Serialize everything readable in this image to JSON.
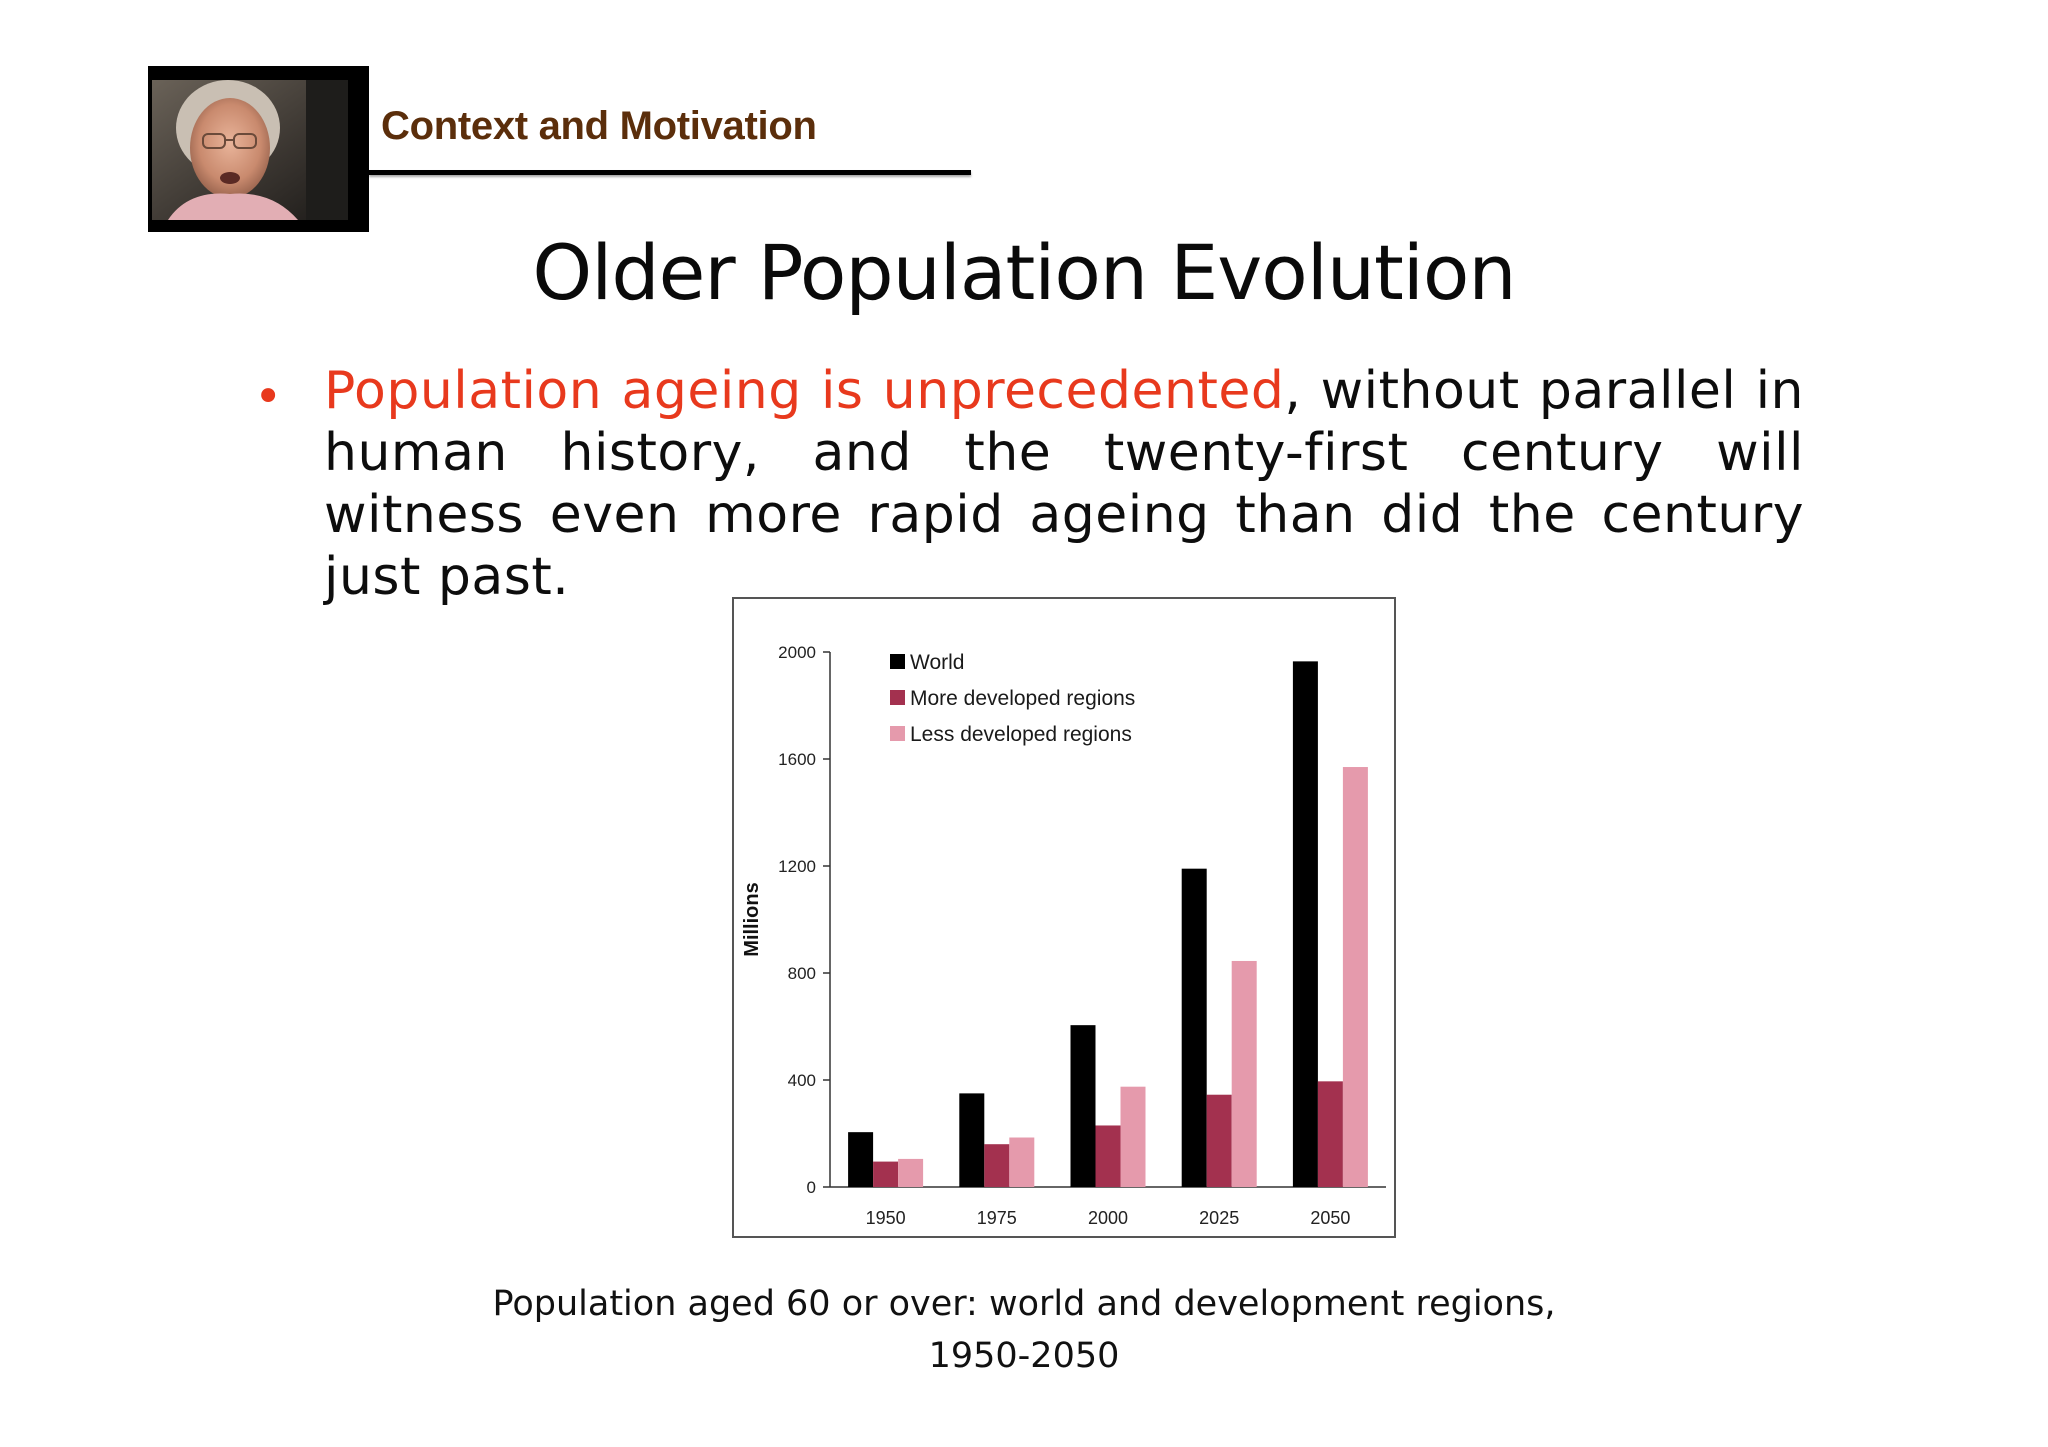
{
  "header": {
    "section_label": "Context and Motivation",
    "photo_icon": "elderly-woman-photo"
  },
  "slide": {
    "title": "Older Population Evolution",
    "bullet": {
      "highlight": "Population ageing is unprecedented",
      "rest": ", without parallel in human history, and the twenty-first century will witness even more rapid ageing than did the century just past."
    },
    "caption_line1": "Population aged 60 or over: world and development regions,",
    "caption_line2": "1950-2050"
  },
  "chart_data": {
    "type": "bar",
    "categories": [
      "1950",
      "1975",
      "2000",
      "2025",
      "2050"
    ],
    "series": [
      {
        "name": "World",
        "color": "#000000",
        "values": [
          205,
          350,
          605,
          1190,
          1965
        ]
      },
      {
        "name": "More developed regions",
        "color": "#a3314f",
        "values": [
          95,
          160,
          230,
          345,
          395
        ]
      },
      {
        "name": "Less developed regions",
        "color": "#e59aac",
        "values": [
          105,
          185,
          375,
          845,
          1570
        ]
      }
    ],
    "ylabel": "Millions",
    "xlabel": "",
    "ylim": [
      0,
      2000
    ],
    "yticks": [
      0,
      400,
      800,
      1200,
      1600,
      2000
    ],
    "legend_position": "top-left",
    "grid": false
  }
}
